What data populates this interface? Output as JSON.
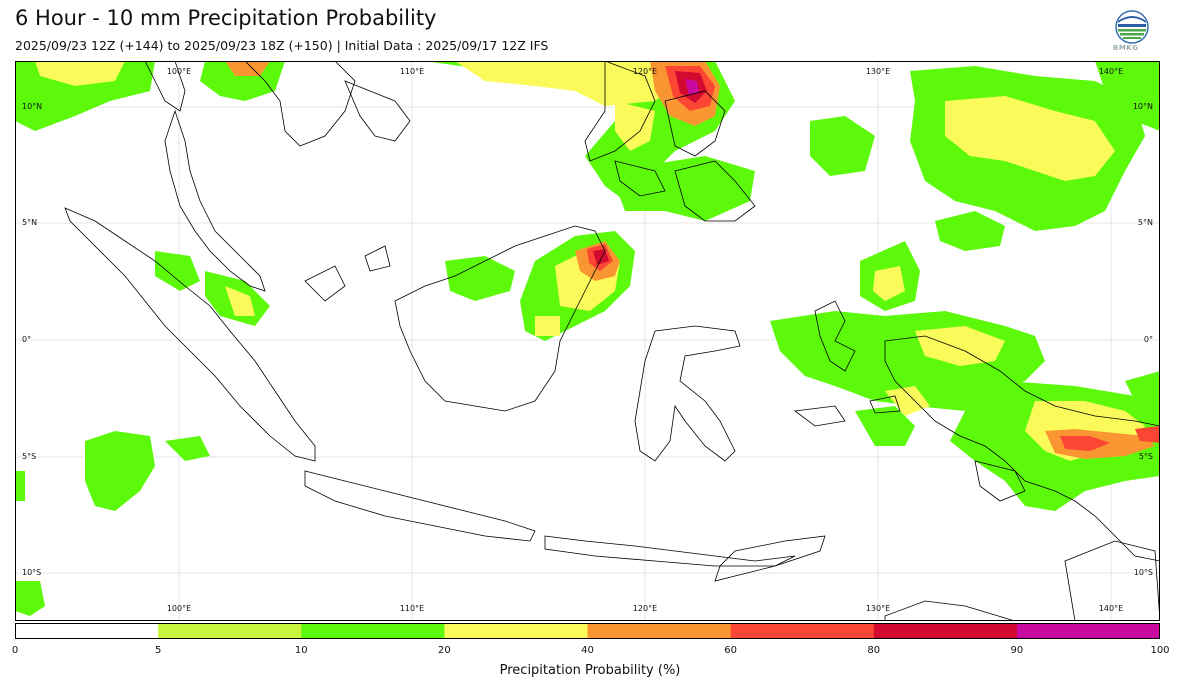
{
  "title": "6 Hour - 10 mm Precipitation Probability",
  "subtitle": "2025/09/23 12Z (+144) to 2025/09/23 18Z (+150) | Initial Data : 2025/09/17 12Z IFS",
  "logo": {
    "text": "BMKG",
    "icon": "bmkg-logo-icon"
  },
  "map": {
    "lon_labels_top": [
      "100°E",
      "110°E",
      "120°E",
      "130°E",
      "140°E"
    ],
    "lon_labels_bottom": [
      "100°E",
      "110°E",
      "120°E",
      "130°E",
      "140°E"
    ],
    "lat_labels_left": [
      "10°N",
      "5°N",
      "0°",
      "5°S",
      "10°S"
    ],
    "lat_labels_right": [
      "10°N",
      "5°N",
      "0°",
      "5°S",
      "10°S"
    ],
    "lon_range": [
      93,
      142.2
    ],
    "lat_range": [
      -11.8,
      12.2
    ]
  },
  "colorbar": {
    "label": "Precipitation Probability (%)",
    "ticks": [
      "0",
      "5",
      "10",
      "20",
      "40",
      "60",
      "80",
      "90",
      "100"
    ],
    "colors": [
      "#ffffff",
      "#c8f53c",
      "#5cfa0a",
      "#fafa5a",
      "#fa9632",
      "#fa4632",
      "#d20a32",
      "#c80aa0"
    ]
  }
}
